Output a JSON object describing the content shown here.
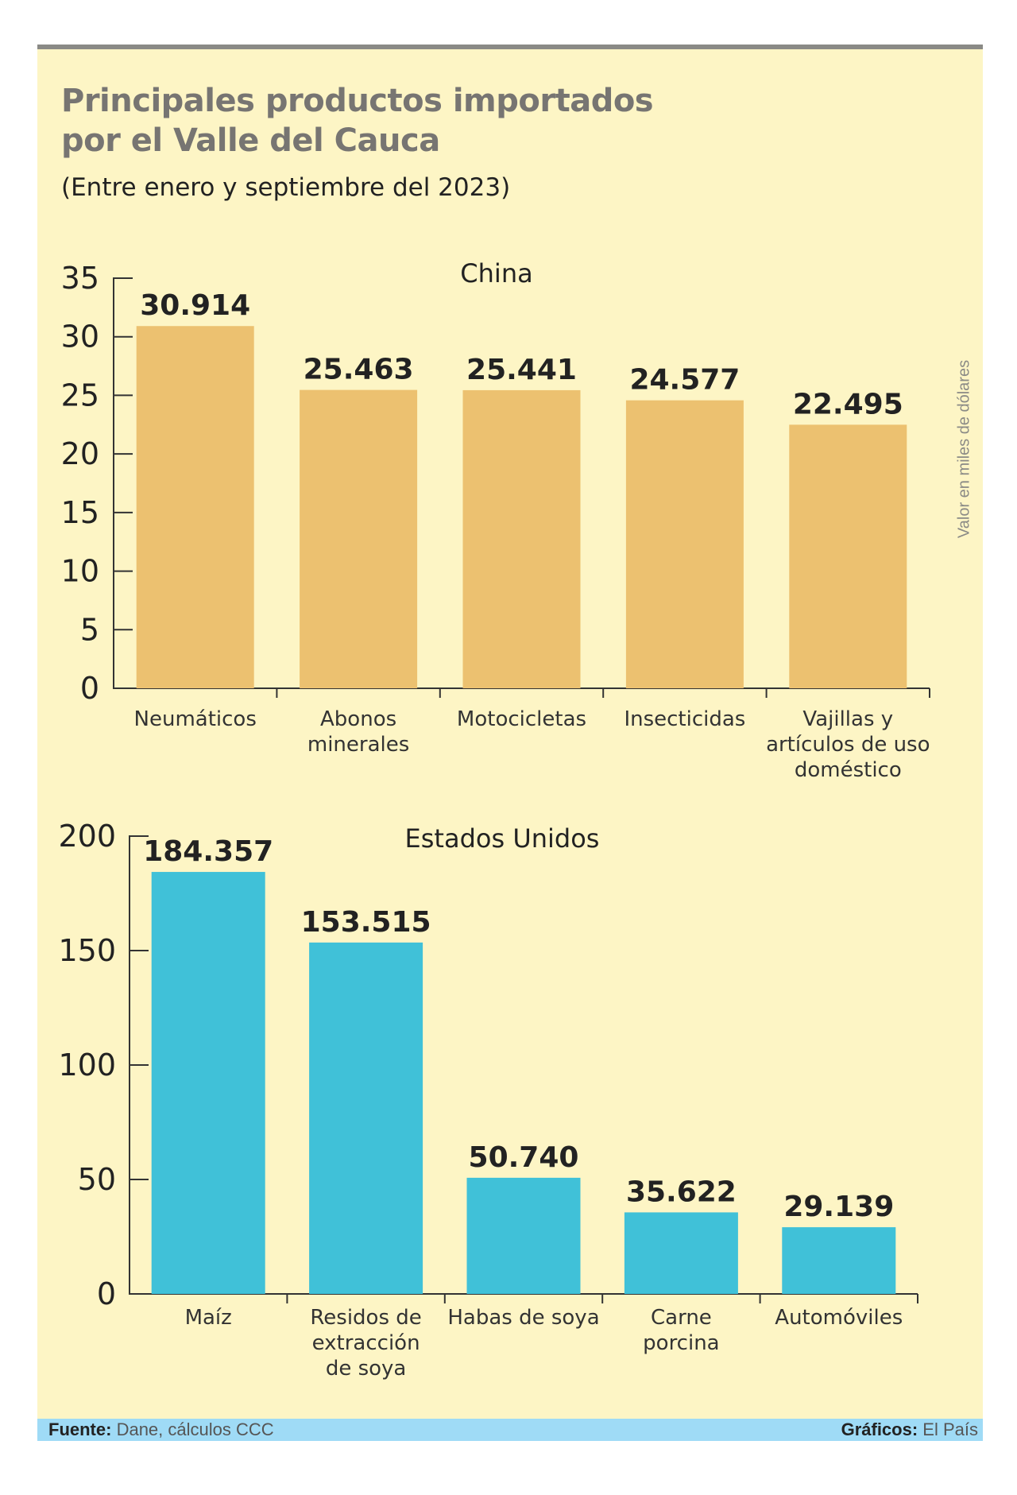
{
  "header": {
    "title_line1": "Principales productos importados",
    "title_line2": "por el Valle del Cauca",
    "subtitle": "(Entre enero y septiembre del 2023)"
  },
  "unit_label": "Valor en miles de dólares",
  "footer": {
    "source_label": "Fuente:",
    "source_value": "Dane, cálculos CCC",
    "graphics_label": "Gráficos:",
    "graphics_value": "El País"
  },
  "colors": {
    "background": "#fdf5c5",
    "china_bar": "#ecc170",
    "usa_bar": "#40c1d8",
    "footer_bar": "#9fdbf6"
  },
  "chart_data": [
    {
      "type": "bar",
      "title": "China",
      "categories": [
        [
          "Neumáticos"
        ],
        [
          "Abonos",
          "minerales"
        ],
        [
          "Motocicletas"
        ],
        [
          "Insecticidas"
        ],
        [
          "Vajillas y",
          "artículos de uso",
          "doméstico"
        ]
      ],
      "values": [
        30.914,
        25.463,
        25.441,
        24.577,
        22.495
      ],
      "value_labels": [
        "30.914",
        "25.463",
        "25.441",
        "24.577",
        "22.495"
      ],
      "ylim": [
        0,
        35
      ],
      "yticks": [
        0,
        5,
        10,
        15,
        20,
        25,
        30,
        35
      ],
      "color": "#ecc170",
      "grid": false
    },
    {
      "type": "bar",
      "title": "Estados Unidos",
      "categories": [
        [
          "Maíz"
        ],
        [
          "Residos de",
          "extracción",
          "de soya"
        ],
        [
          "Habas de soya"
        ],
        [
          "Carne",
          "porcina"
        ],
        [
          "Automóviles"
        ]
      ],
      "values": [
        184.357,
        153.515,
        50.74,
        35.622,
        29.139
      ],
      "value_labels": [
        "184.357",
        "153.515",
        "50.740",
        "35.622",
        "29.139"
      ],
      "ylim": [
        0,
        200
      ],
      "yticks": [
        0,
        50,
        100,
        150,
        200
      ],
      "color": "#40c1d8",
      "grid": false
    }
  ]
}
